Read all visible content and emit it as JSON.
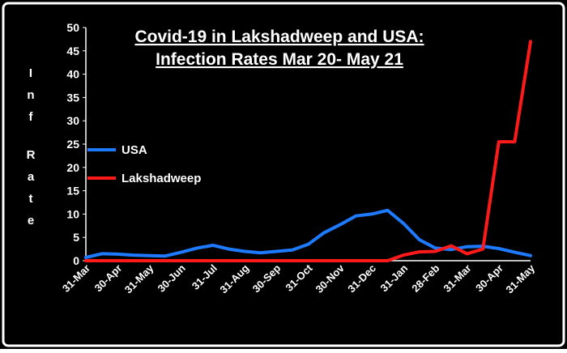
{
  "colors": {
    "background": "#000000",
    "frame": "#ffffff",
    "text": "#ffffff",
    "usa": "#1e7bff",
    "lakshadweep": "#ff1a1a"
  },
  "chart_data": {
    "type": "line",
    "title_lines": [
      "Covid-19 in Lakshadweep and USA:",
      "Infection Rates Mar 20- May 21"
    ],
    "ylabel_lines": [
      "I n f",
      "R a t e"
    ],
    "xlabel": "",
    "ylim": [
      0,
      50
    ],
    "y_ticks": [
      0,
      5,
      10,
      15,
      20,
      25,
      30,
      35,
      40,
      45,
      50
    ],
    "grid": false,
    "legend_position": "left-middle",
    "x_labels": [
      "31-Mar",
      "30-Apr",
      "31-May",
      "30-Jun",
      "31-Jul",
      "31-Aug",
      "30-Sep",
      "31-Oct",
      "30-Nov",
      "31-Dec",
      "31-Jan",
      "28-Feb",
      "31-Mar",
      "30-Apr",
      "31-May"
    ],
    "x_label_positions": [
      0,
      2,
      4,
      6,
      8,
      10,
      12,
      14,
      16,
      18,
      20,
      22,
      24,
      26,
      28
    ],
    "x_count": 29,
    "series": [
      {
        "name": "USA",
        "color": "#1e7bff",
        "values": [
          0.7,
          1.5,
          1.4,
          1.2,
          1.1,
          1.0,
          1.8,
          2.7,
          3.3,
          2.5,
          2.0,
          1.7,
          2.0,
          2.3,
          3.5,
          6.0,
          7.7,
          9.6,
          10.0,
          10.8,
          8.0,
          4.5,
          2.7,
          2.4,
          3.0,
          3.1,
          2.6,
          1.8,
          1.1
        ]
      },
      {
        "name": "Lakshadweep",
        "color": "#ff1a1a",
        "values": [
          0,
          0,
          0,
          0,
          0,
          0,
          0,
          0,
          0,
          0,
          0,
          0,
          0,
          0,
          0,
          0,
          0,
          0,
          0,
          0,
          1.2,
          1.9,
          2.0,
          3.2,
          1.5,
          2.5,
          25.5,
          25.5,
          47.0
        ]
      }
    ]
  }
}
